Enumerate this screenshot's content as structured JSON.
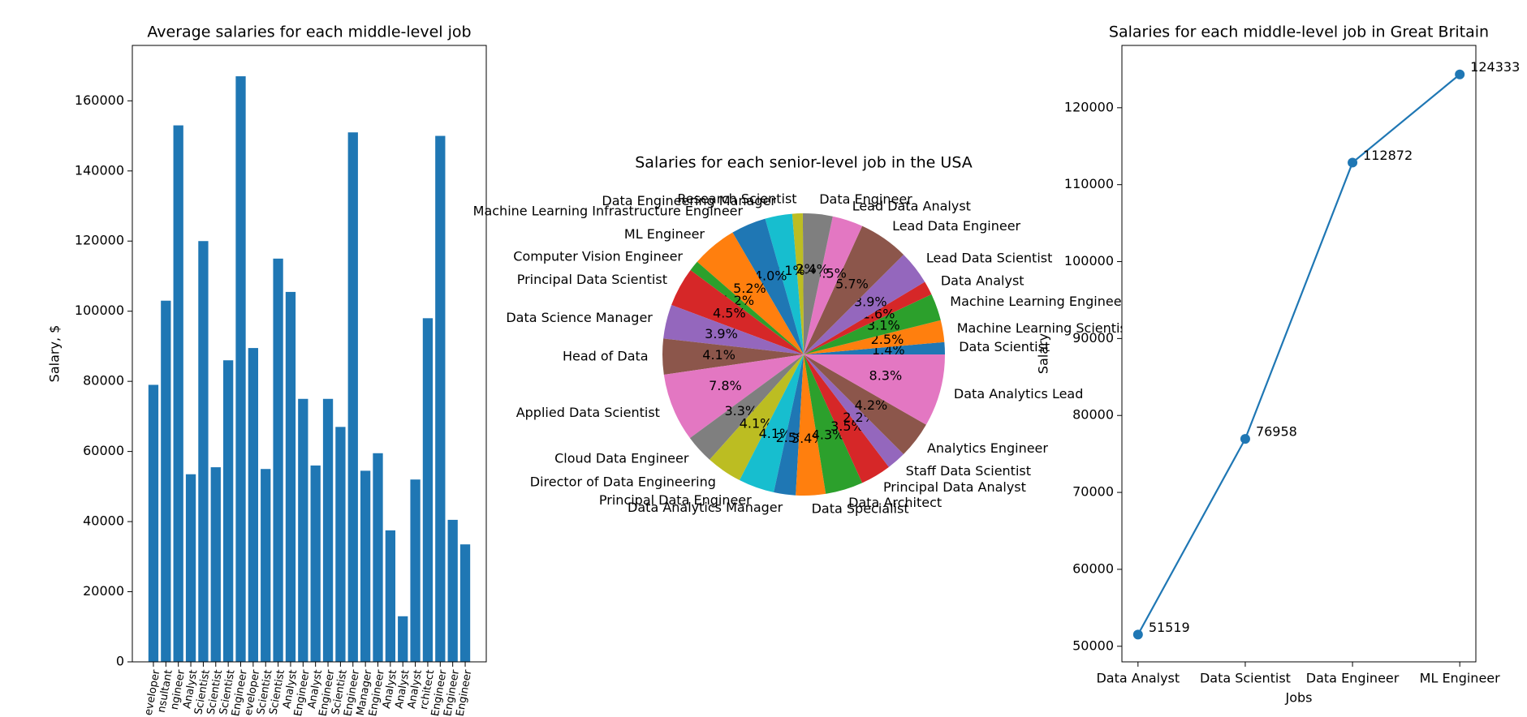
{
  "chart_data": [
    {
      "type": "bar",
      "title": "Average salaries for each middle-level job",
      "ylabel": "Salary, $",
      "categories": [
        "eveloper",
        "nsultant",
        "ngineer",
        "Analyst",
        "Scientist",
        "Scientist",
        "Scientist",
        "Engineer",
        "eveloper",
        "Scientist",
        "Scientist",
        "Analyst",
        "Engineer",
        "Analyst",
        "Engineer",
        "Scientist",
        "Engineer",
        "Manager",
        "Engineer",
        "Analyst",
        "Analyst",
        "Analyst",
        "rchitect",
        "Engineer",
        "Engineer",
        "Engineer"
      ],
      "values": [
        79000,
        103000,
        153000,
        53500,
        120000,
        55500,
        86000,
        167000,
        89500,
        55000,
        115000,
        105500,
        75000,
        56000,
        75000,
        67000,
        151000,
        54500,
        59500,
        37500,
        13000,
        52000,
        98000,
        150000,
        40500,
        33500
      ],
      "color": "#1f77b4",
      "ylim": [
        0,
        175800
      ],
      "yticks": [
        0,
        20000,
        40000,
        60000,
        80000,
        100000,
        120000,
        140000,
        160000
      ]
    },
    {
      "type": "pie",
      "title": "Salaries for each senior-level job in the USA",
      "categories": [
        "Data Scientist",
        "Machine Learning Scientist",
        "Machine Learning Engineer",
        "Data Analyst",
        "Lead Data Scientist",
        "Lead Data Engineer",
        "Lead Data Analyst",
        "Data Engineer",
        "Research Scientist",
        "Data Engineering Manager",
        "Machine Learning Infrastructure Engineer",
        "ML Engineer",
        "Computer Vision Engineer",
        "Principal Data Scientist",
        "Data Science Manager",
        "Head of Data",
        "Applied Data Scientist",
        "Cloud Data Engineer",
        "Director of Data Engineering",
        "Principal Data Engineer",
        "Data Analytics Manager",
        "Data Specialist",
        "Data Architect",
        "Principal Data Analyst",
        "Staff Data Scientist",
        "Analytics Engineer",
        "Data Analytics Lead"
      ],
      "values": [
        1.4,
        2.5,
        3.1,
        1.6,
        3.9,
        5.7,
        3.5,
        3.4,
        1.2,
        3.1,
        4.0,
        5.2,
        1.2,
        4.5,
        3.9,
        4.1,
        7.8,
        3.3,
        4.1,
        4.1,
        2.5,
        3.4,
        4.3,
        3.5,
        2.2,
        4.2,
        8.3
      ],
      "value_labels": [
        "1.4%",
        "2.5%",
        "3.1%",
        "1.6%",
        "3.9%",
        "5.7%",
        "3.5%",
        "3.4%",
        "1.2%",
        "3.1%",
        "4.0%",
        "5.2%",
        "1.2%",
        "4.5%",
        "3.9%",
        "4.1%",
        "7.8%",
        "3.3%",
        "4.1%",
        "4.1%",
        "2.5%",
        "3.4%",
        "4.3%",
        "3.5%",
        "2.2%",
        "4.2%",
        "8.3%"
      ],
      "colors": [
        "#1f77b4",
        "#ff7f0e",
        "#2ca02c",
        "#d62728",
        "#9467bd",
        "#8c564b",
        "#e377c2",
        "#7f7f7f",
        "#bcbd22",
        "#17becf"
      ]
    },
    {
      "type": "line",
      "title": "Salaries for each middle-level job in Great Britain",
      "xlabel": "Jobs",
      "ylabel": "Salary",
      "categories": [
        "Data Analyst",
        "Data Scientist",
        "Data Engineer",
        "ML Engineer"
      ],
      "values": [
        51519,
        76958,
        112872,
        124333
      ],
      "color": "#1f77b4",
      "ylim": [
        47975,
        128100
      ],
      "yticks": [
        50000,
        60000,
        70000,
        80000,
        90000,
        100000,
        110000,
        120000
      ]
    }
  ]
}
